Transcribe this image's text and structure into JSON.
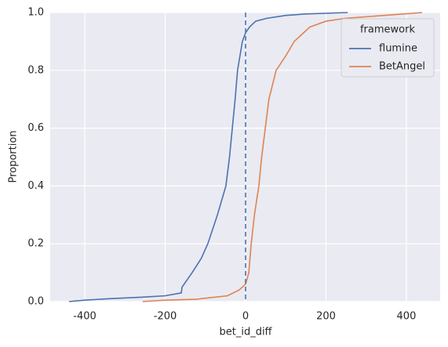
{
  "chart_data": {
    "type": "line",
    "xlabel": "bet_id_diff",
    "ylabel": "Proportion",
    "xlim": [
      -486,
      484
    ],
    "ylim": [
      0,
      1
    ],
    "xticks": [
      -400,
      -200,
      0,
      200,
      400
    ],
    "yticks": [
      {
        "value": 0,
        "label": "0.0"
      },
      0.2,
      0.4,
      0.6,
      0.8,
      {
        "value": 1,
        "label": "1.0"
      }
    ],
    "grid": true,
    "legend_title": "framework",
    "legend_position": "upper right",
    "vline": {
      "x": 0,
      "color": "#4c72b0",
      "style": "dashed"
    },
    "series": [
      {
        "name": "flumine",
        "color": "#4c72b0",
        "x": [
          -439,
          -400,
          -338,
          -260,
          -200,
          -160,
          -158,
          -133,
          -110,
          -94,
          -70,
          -49,
          -40,
          -33,
          -26,
          -20,
          -8,
          0,
          10,
          25,
          53,
          100,
          150,
          254
        ],
        "values": [
          0,
          0.005,
          0.01,
          0.015,
          0.02,
          0.03,
          0.05,
          0.1,
          0.15,
          0.2,
          0.3,
          0.4,
          0.5,
          0.6,
          0.7,
          0.8,
          0.9,
          0.93,
          0.95,
          0.97,
          0.98,
          0.99,
          0.995,
          1
        ]
      },
      {
        "name": "BetAngel",
        "color": "#dd8452",
        "x": [
          -256,
          -200,
          -123,
          -45,
          -16,
          0,
          8,
          14,
          22,
          33,
          40,
          49,
          58,
          76,
          100,
          121,
          160,
          200,
          248,
          345,
          439
        ],
        "values": [
          0,
          0.005,
          0.008,
          0.02,
          0.04,
          0.06,
          0.1,
          0.2,
          0.3,
          0.4,
          0.5,
          0.6,
          0.7,
          0.8,
          0.85,
          0.9,
          0.95,
          0.97,
          0.98,
          0.99,
          1
        ]
      }
    ]
  }
}
